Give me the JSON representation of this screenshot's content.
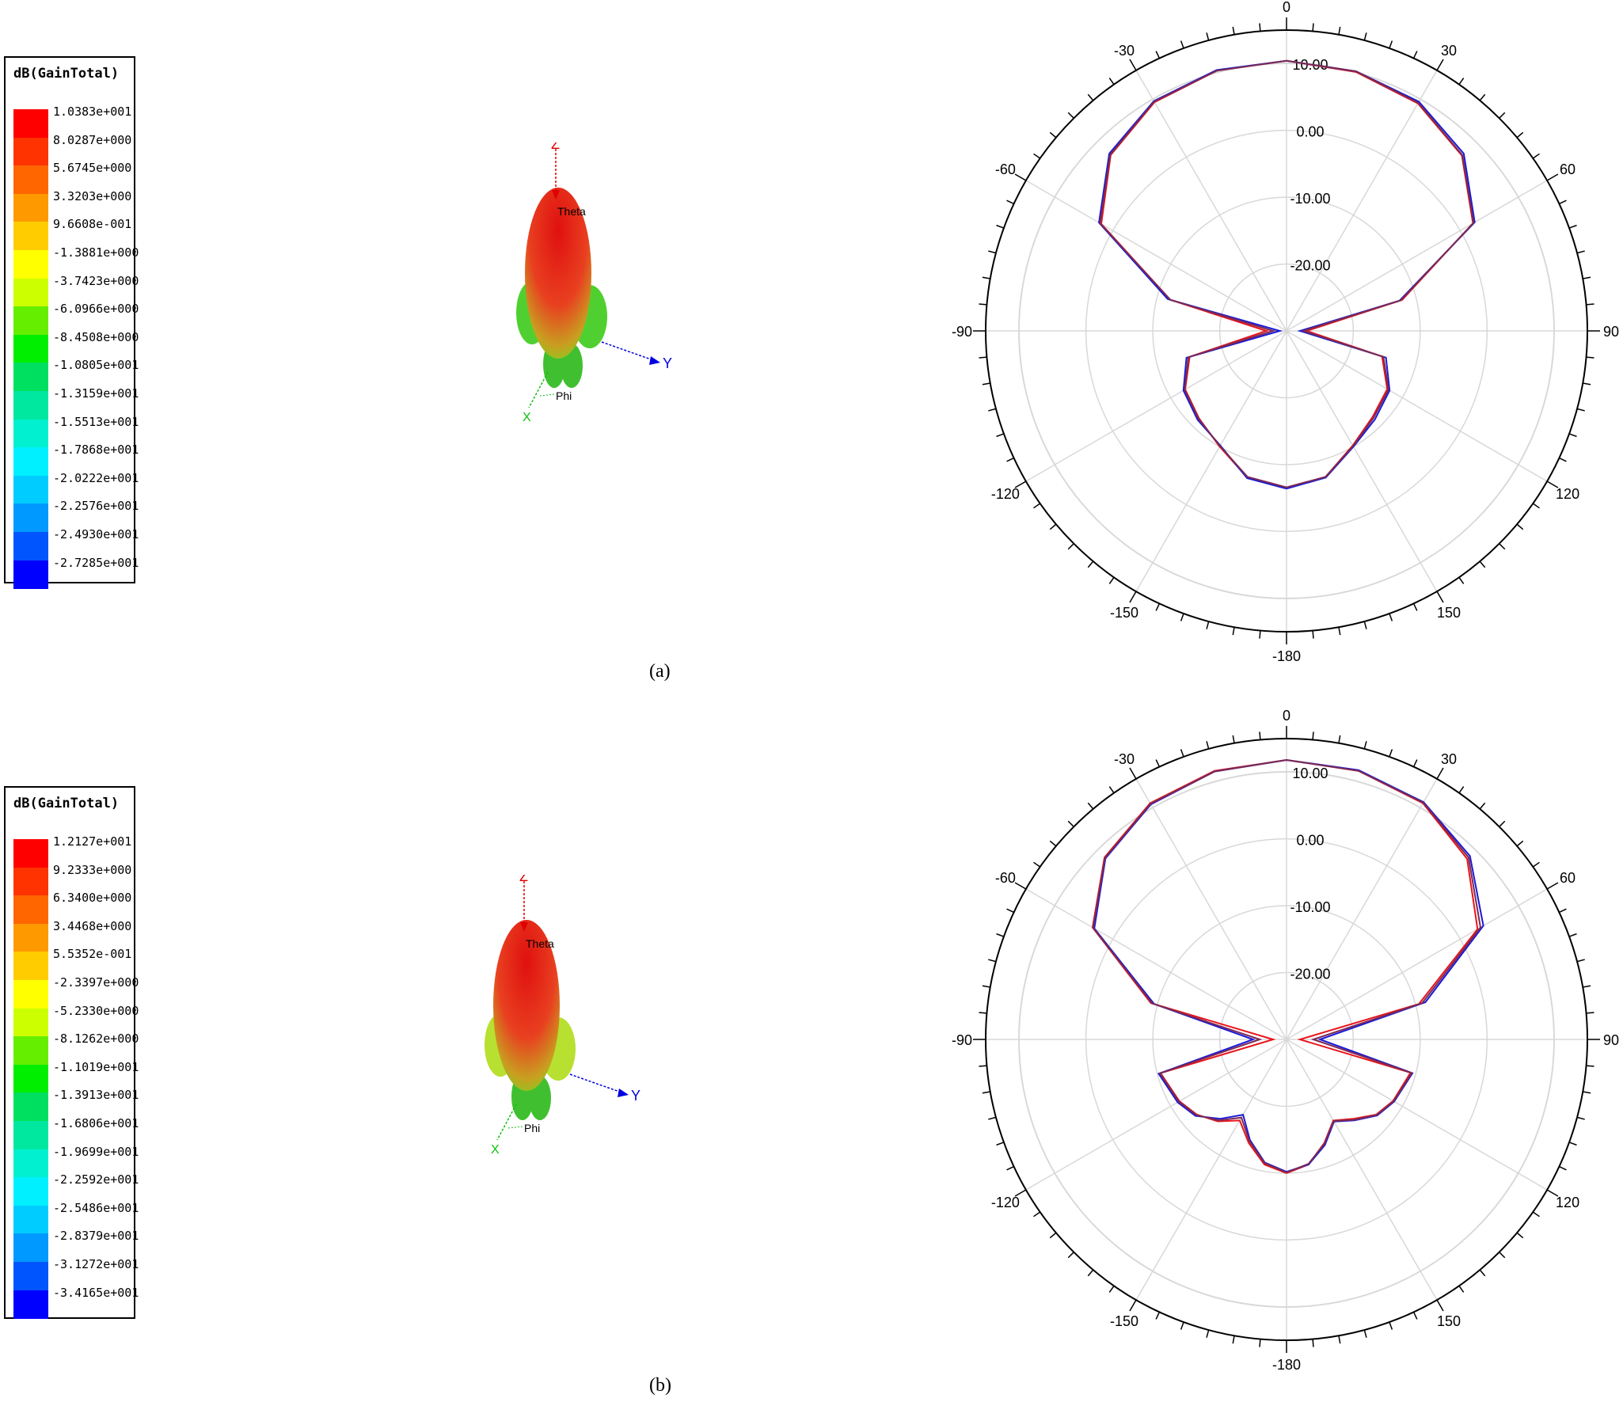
{
  "figure": {
    "panels": [
      {
        "caption": "(a)",
        "legend": {
          "title": "dB(GainTotal)",
          "values": [
            "1.0383e+001",
            "8.0287e+000",
            "5.6745e+000",
            "3.3203e+000",
            "9.6608e-001",
            "-1.3881e+000",
            "-3.7423e+000",
            "-6.0966e+000",
            "-8.4508e+000",
            "-1.0805e+001",
            "-1.3159e+001",
            "-1.5513e+001",
            "-1.7868e+001",
            "-2.0222e+001",
            "-2.2576e+001",
            "-2.4930e+001",
            "-2.7285e+001"
          ]
        },
        "axes3d": {
          "z": "Z",
          "y": "Y",
          "x": "X",
          "theta": "Theta",
          "phi": "Phi"
        }
      },
      {
        "caption": "(b)",
        "legend": {
          "title": "dB(GainTotal)",
          "values": [
            "1.2127e+001",
            "9.2333e+000",
            "6.3400e+000",
            "3.4468e+000",
            "5.5352e-001",
            "-2.3397e+000",
            "-5.2330e+000",
            "-8.1262e+000",
            "-1.1019e+001",
            "-1.3913e+001",
            "-1.6806e+001",
            "-1.9699e+001",
            "-2.2592e+001",
            "-2.5486e+001",
            "-2.8379e+001",
            "-3.1272e+001",
            "-3.4165e+001"
          ]
        },
        "axes3d": {
          "z": "Z",
          "y": "Y",
          "x": "X",
          "theta": "Theta",
          "phi": "Phi"
        }
      }
    ],
    "legend_colors": [
      "#ff0000",
      "#ff3300",
      "#ff6600",
      "#ff9900",
      "#ffcc00",
      "#ffff00",
      "#ccff00",
      "#66ee00",
      "#00ee00",
      "#00e060",
      "#00e8a0",
      "#00f0d0",
      "#00f0ff",
      "#00ccff",
      "#0099ff",
      "#0055ff",
      "#0000ff"
    ]
  },
  "chart_data": [
    {
      "type": "polar",
      "angle_ticks": [
        "0",
        "30",
        "60",
        "90",
        "120",
        "150",
        "-180",
        "-150",
        "-120",
        "-90",
        "-60",
        "-30"
      ],
      "radial_ticks": [
        "10.00",
        "0.00",
        "-10.00",
        "-20.00"
      ],
      "rlim": [
        -30,
        15
      ],
      "grid": true,
      "series": [
        {
          "color": "#e8141c",
          "theta": [
            -180,
            -165,
            -150,
            -135,
            -120,
            -105,
            -90,
            -75,
            -60,
            -45,
            -30,
            -15,
            0,
            15,
            30,
            45,
            60,
            75,
            90,
            105,
            120,
            135,
            150,
            165,
            180
          ],
          "r": [
            -6.5,
            -7.3,
            -10,
            -11.5,
            -12.5,
            -15,
            -27,
            -12,
            2,
            7.2,
            9.5,
            10.3,
            10.4,
            10.1,
            9.3,
            7.1,
            2.2,
            -12.1,
            -27,
            -15.2,
            -12.6,
            -11.8,
            -10.2,
            -7.4,
            -6.5
          ]
        },
        {
          "color": "#1a1ad8",
          "theta": [
            -180,
            -165,
            -150,
            -135,
            -120,
            -105,
            -90,
            -75,
            -60,
            -45,
            -30,
            -15,
            0,
            15,
            30,
            45,
            60,
            75,
            90,
            105,
            120,
            135,
            150,
            165,
            180
          ],
          "r": [
            -6.4,
            -7.2,
            -10.2,
            -11.2,
            -12.2,
            -14.5,
            -29,
            -11.6,
            2.4,
            7.5,
            9.7,
            10.4,
            10.4,
            10.2,
            9.6,
            7.5,
            2.5,
            -12.5,
            -28,
            -14.6,
            -12.2,
            -11.3,
            -10,
            -7.3,
            -6.4
          ]
        },
        {
          "color": "#7a2a55",
          "theta": [
            -180,
            -165,
            -150,
            -135,
            -120,
            -105,
            -90,
            -75,
            -60,
            -45,
            -30,
            -15,
            0,
            15,
            30,
            45,
            60,
            75,
            90,
            105,
            120,
            135,
            150,
            165,
            180
          ],
          "r": [
            -6.6,
            -7.4,
            -10.1,
            -11.4,
            -12.4,
            -14.8,
            -28,
            -12,
            2.2,
            7.3,
            9.6,
            10.3,
            10.4,
            10.2,
            9.4,
            7.2,
            2.3,
            -12.3,
            -27.5,
            -15,
            -12.4,
            -11.6,
            -10.1,
            -7.4,
            -6.6
          ]
        }
      ]
    },
    {
      "type": "polar",
      "angle_ticks": [
        "0",
        "30",
        "60",
        "90",
        "120",
        "150",
        "-180",
        "-150",
        "-120",
        "-90",
        "-60",
        "-30"
      ],
      "radial_ticks": [
        "10.00",
        "0.00",
        "-10.00",
        "-20.00"
      ],
      "rlim": [
        -30,
        15
      ],
      "grid": true,
      "series": [
        {
          "color": "#e8141c",
          "theta": [
            -180,
            -170,
            -160,
            -150,
            -140,
            -130,
            -120,
            -105,
            -90,
            -75,
            -60,
            -45,
            -30,
            -15,
            0,
            15,
            30,
            45,
            60,
            75,
            90,
            105,
            120,
            130,
            140,
            150,
            160,
            170,
            180
          ],
          "r": [
            -10,
            -11,
            -13.5,
            -16,
            -14,
            -12.5,
            -11.5,
            -10.5,
            -28,
            -9,
            3.5,
            8.5,
            10.8,
            11.6,
            11.8,
            11.6,
            10.8,
            8.2,
            3,
            -9.5,
            -28,
            -10.8,
            -11.6,
            -12.5,
            -14.5,
            -16,
            -13.5,
            -11,
            -10
          ]
        },
        {
          "color": "#1a1ad8",
          "theta": [
            -180,
            -170,
            -160,
            -150,
            -140,
            -130,
            -120,
            -105,
            -90,
            -75,
            -60,
            -45,
            -30,
            -15,
            0,
            15,
            30,
            45,
            60,
            75,
            90,
            105,
            120,
            130,
            140,
            150,
            160,
            170,
            180
          ],
          "r": [
            -10.2,
            -11.3,
            -14,
            -17,
            -14.5,
            -12.2,
            -11.2,
            -10.2,
            -25,
            -9.5,
            3.2,
            8.3,
            10.6,
            11.5,
            11.8,
            11.7,
            11,
            8.8,
            4,
            -8.5,
            -25,
            -10.5,
            -11.4,
            -12.3,
            -14.2,
            -15.8,
            -13.2,
            -11,
            -10.2
          ]
        },
        {
          "color": "#7a2a55",
          "theta": [
            -180,
            -170,
            -160,
            -150,
            -140,
            -130,
            -120,
            -105,
            -90,
            -75,
            -60,
            -45,
            -30,
            -15,
            0,
            15,
            30,
            45,
            60,
            75,
            90,
            105,
            120,
            130,
            140,
            150,
            160,
            170,
            180
          ],
          "r": [
            -10.1,
            -11.2,
            -13.8,
            -16.5,
            -14.2,
            -12.4,
            -11.4,
            -10.4,
            -26,
            -9.2,
            3.4,
            8.4,
            10.7,
            11.5,
            11.8,
            11.6,
            10.9,
            8.5,
            3.5,
            -9,
            -26,
            -10.6,
            -11.5,
            -12.4,
            -14.3,
            -15.9,
            -13.4,
            -11.1,
            -10.1
          ]
        }
      ]
    }
  ]
}
